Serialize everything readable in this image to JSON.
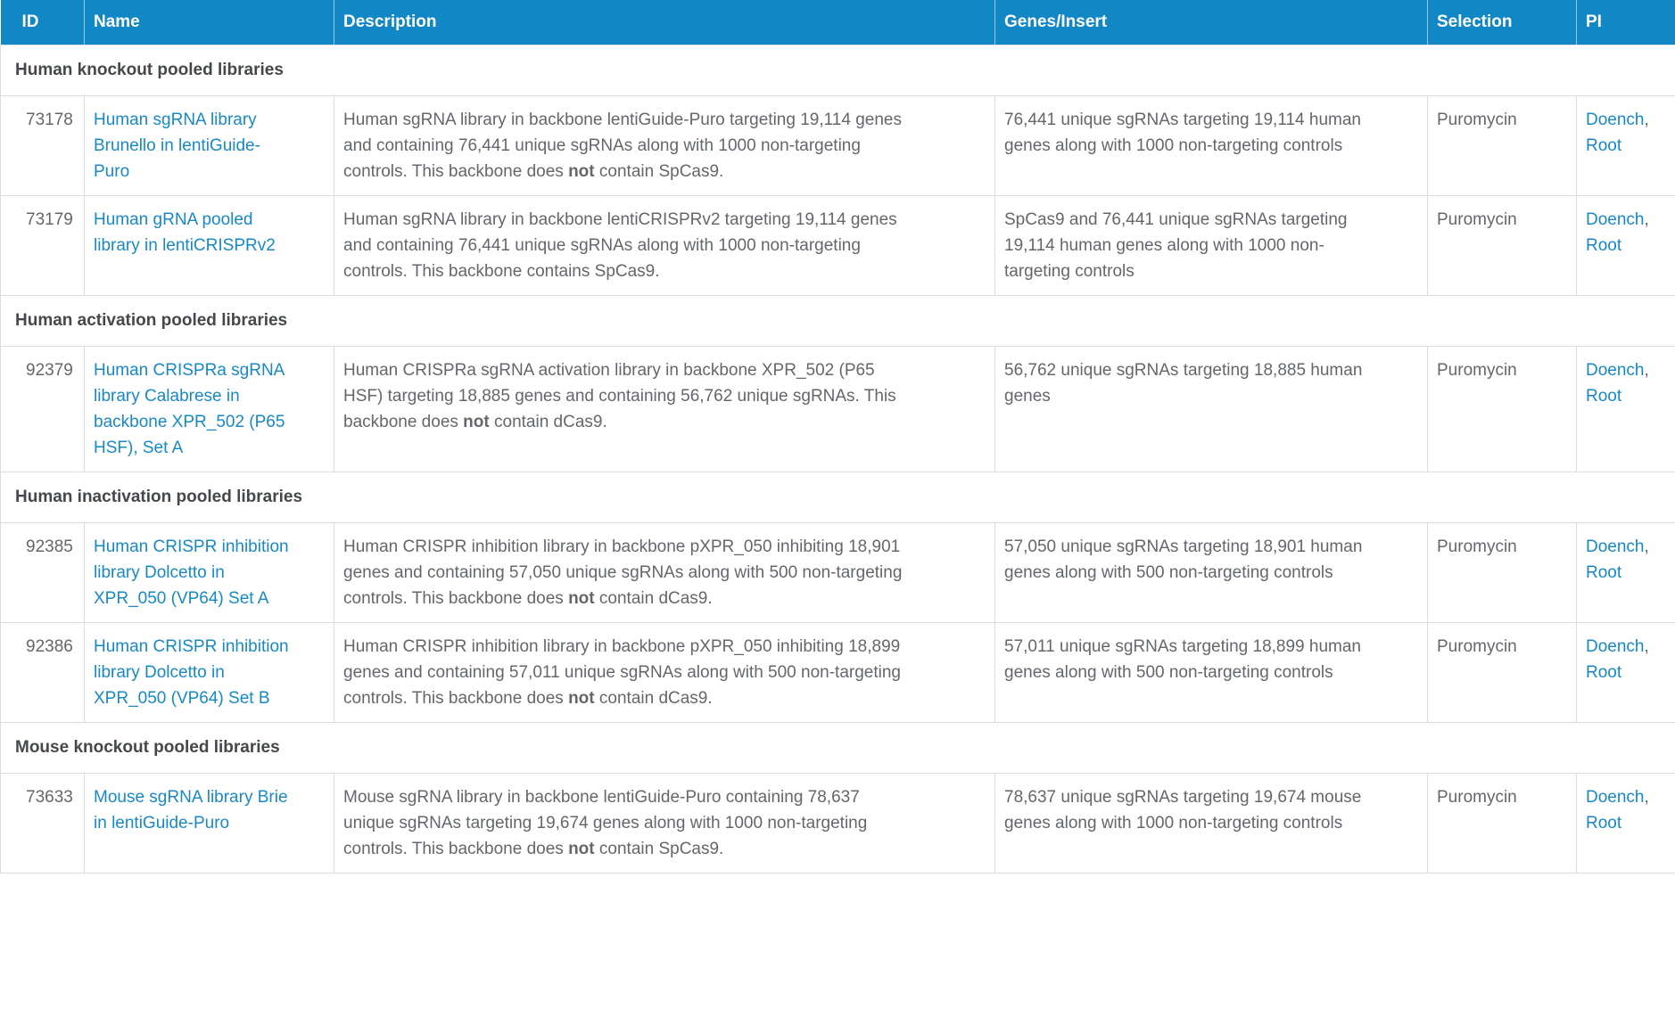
{
  "colors": {
    "header_bg": "#1287c6",
    "header_text": "#ffffff",
    "link": "#1789c6",
    "body_text": "#63676b",
    "section_text": "#44484b",
    "border": "#dadcdd"
  },
  "table": {
    "columns": [
      {
        "label": "ID"
      },
      {
        "label": "Name"
      },
      {
        "label": "Description"
      },
      {
        "label": "Genes/Insert"
      },
      {
        "label": "Selection"
      },
      {
        "label": "PI"
      }
    ],
    "sections": [
      {
        "title": "Human knockout pooled libraries",
        "rows": [
          {
            "id": "73178",
            "name": "Human sgRNA library Brunello in lentiGuide-Puro",
            "description": [
              {
                "text": "Human sgRNA library in backbone lentiGuide-Puro targeting 19,114 genes and containing 76,441 unique sgRNAs along with 1000 non-targeting controls. This backbone does "
              },
              {
                "text": "not",
                "bold": true
              },
              {
                "text": " contain SpCas9."
              }
            ],
            "genes_insert": "76,441 unique sgRNAs targeting 19,114 human genes along with 1000 non-targeting controls",
            "selection": "Puromycin",
            "pi": [
              "Doench",
              "Root"
            ]
          },
          {
            "id": "73179",
            "name": "Human gRNA pooled library in lentiCRISPRv2",
            "description": [
              {
                "text": "Human sgRNA library in backbone lentiCRISPRv2 targeting 19,114 genes and containing 76,441 unique sgRNAs along with 1000 non-targeting controls. This backbone contains SpCas9."
              }
            ],
            "genes_insert": "SpCas9 and 76,441 unique sgRNAs targeting 19,114 human genes along with 1000 non-targeting controls",
            "selection": "Puromycin",
            "pi": [
              "Doench",
              "Root"
            ]
          }
        ]
      },
      {
        "title": "Human activation pooled libraries",
        "rows": [
          {
            "id": "92379",
            "name": "Human CRISPRa sgRNA library Calabrese in backbone XPR_502 (P65 HSF), Set A",
            "description": [
              {
                "text": "Human CRISPRa sgRNA activation library in backbone XPR_502 (P65 HSF) targeting 18,885 genes and containing 56,762 unique sgRNAs. This backbone does "
              },
              {
                "text": "not",
                "bold": true
              },
              {
                "text": " contain dCas9."
              }
            ],
            "genes_insert": "56,762 unique sgRNAs targeting 18,885 human genes",
            "selection": "Puromycin",
            "pi": [
              "Doench",
              "Root"
            ]
          }
        ]
      },
      {
        "title": "Human inactivation pooled libraries",
        "rows": [
          {
            "id": "92385",
            "name": "Human CRISPR inhibition library Dolcetto in XPR_050 (VP64) Set A",
            "description": [
              {
                "text": "Human CRISPR inhibition library in backbone pXPR_050 inhibiting 18,901 genes and containing 57,050 unique sgRNAs along with 500 non-targeting controls. This backbone does "
              },
              {
                "text": "not",
                "bold": true
              },
              {
                "text": " contain dCas9."
              }
            ],
            "genes_insert": "57,050 unique sgRNAs targeting 18,901 human genes along with 500 non-targeting controls",
            "selection": "Puromycin",
            "pi": [
              "Doench",
              "Root"
            ]
          },
          {
            "id": "92386",
            "name": "Human CRISPR inhibition library Dolcetto in XPR_050 (VP64) Set B",
            "description": [
              {
                "text": "Human CRISPR inhibition library in backbone pXPR_050 inhibiting 18,899 genes and containing 57,011 unique sgRNAs along with 500 non-targeting controls. This backbone does "
              },
              {
                "text": "not",
                "bold": true
              },
              {
                "text": " contain dCas9."
              }
            ],
            "genes_insert": "57,011 unique sgRNAs targeting 18,899 human genes along with 500 non-targeting controls",
            "selection": "Puromycin",
            "pi": [
              "Doench",
              "Root"
            ]
          }
        ]
      },
      {
        "title": "Mouse knockout pooled libraries",
        "rows": [
          {
            "id": "73633",
            "name": "Mouse sgRNA library Brie in lentiGuide-Puro",
            "description": [
              {
                "text": "Mouse sgRNA library in backbone lentiGuide-Puro containing 78,637 unique sgRNAs targeting 19,674 genes along with 1000 non-targeting controls. This backbone does "
              },
              {
                "text": "not",
                "bold": true
              },
              {
                "text": " contain SpCas9."
              }
            ],
            "genes_insert": "78,637 unique sgRNAs targeting 19,674 mouse genes along with 1000 non-targeting controls",
            "selection": "Puromycin",
            "pi": [
              "Doench",
              "Root"
            ]
          }
        ]
      }
    ]
  }
}
